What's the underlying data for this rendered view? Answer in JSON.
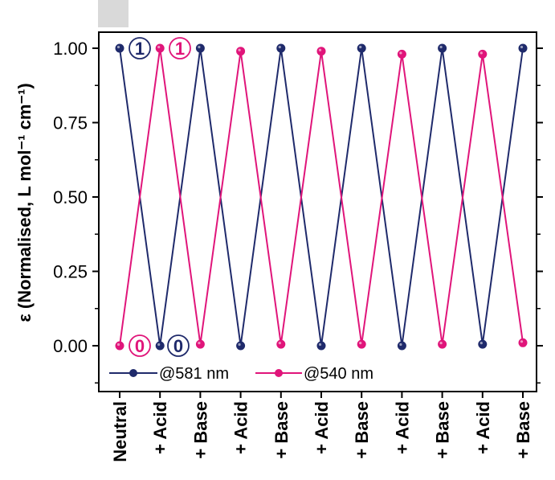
{
  "chart_data": {
    "type": "line",
    "ylabel": "ε (Normalised, L mol⁻¹ cm⁻¹)",
    "categories": [
      "Neutral",
      "+ Acid",
      "+ Base",
      "+ Acid",
      "+ Base",
      "+ Acid",
      "+ Base",
      "+ Acid",
      "+ Base",
      "+ Acid",
      "+ Base"
    ],
    "yticks": [
      "1.00",
      "0.75",
      "0.50",
      "0.25",
      "0.00"
    ],
    "ytick_values": [
      1.0,
      0.75,
      0.5,
      0.25,
      0.0
    ],
    "ylim": [
      -0.15,
      1.05
    ],
    "series": [
      {
        "name": "@581 nm",
        "color": "#1f2a6b",
        "values": [
          1.0,
          0.0,
          1.0,
          0.0,
          1.0,
          0.0,
          1.0,
          0.0,
          1.0,
          0.005,
          1.0
        ]
      },
      {
        "name": "@540 nm",
        "color": "#e0157a",
        "values": [
          0.0,
          1.0,
          0.005,
          0.99,
          0.005,
          0.99,
          0.005,
          0.98,
          0.005,
          0.98,
          0.01
        ]
      }
    ],
    "annotations": [
      {
        "text": "1",
        "color": "#1f2a6b"
      },
      {
        "text": "1",
        "color": "#e0157a"
      },
      {
        "text": "0",
        "color": "#e0157a"
      },
      {
        "text": "0",
        "color": "#1f2a6b"
      }
    ],
    "legend_position": "bottom-left inside",
    "grid": false
  }
}
